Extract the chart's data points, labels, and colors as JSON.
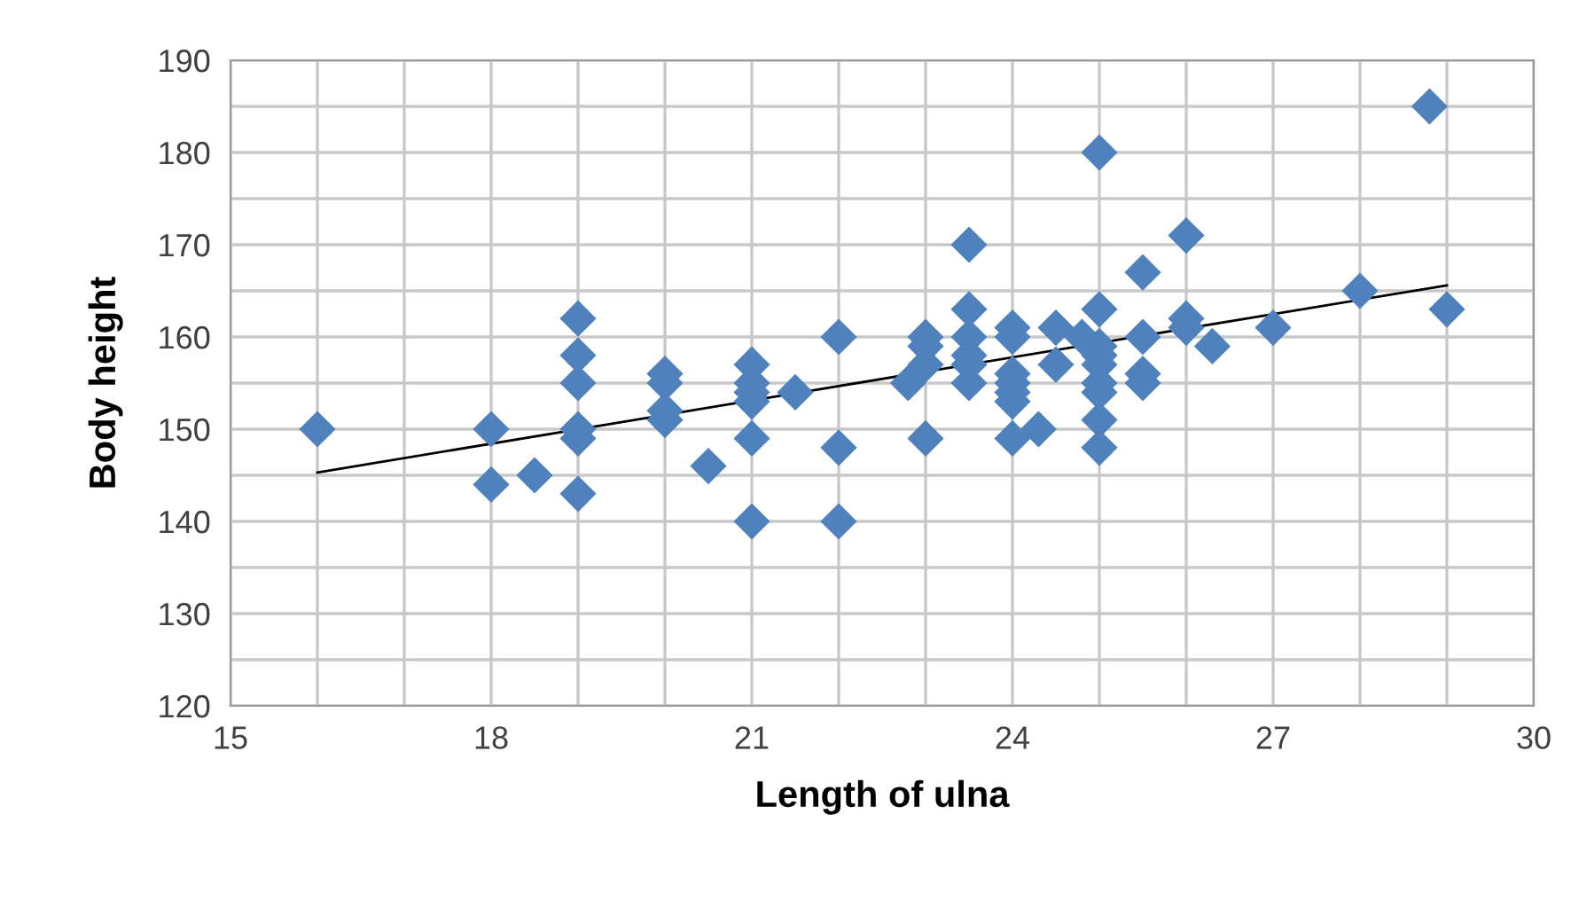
{
  "chart_data": {
    "type": "scatter",
    "xlabel": "Length of ulna",
    "ylabel": "Body height",
    "xlim": [
      15,
      30
    ],
    "ylim": [
      120,
      190
    ],
    "xticks": [
      15,
      {
        "value": 16,
        "label": null
      },
      {
        "value": 17,
        "label": null
      },
      18,
      {
        "value": 19,
        "label": null
      },
      {
        "value": 20,
        "label": null
      },
      21,
      {
        "value": 22,
        "label": null
      },
      {
        "value": 23,
        "label": null
      },
      24,
      {
        "value": 25,
        "label": null
      },
      {
        "value": 26,
        "label": null
      },
      27,
      {
        "value": 28,
        "label": null
      },
      {
        "value": 29,
        "label": null
      },
      30
    ],
    "yticks": [
      120,
      {
        "value": 125,
        "label": null
      },
      130,
      {
        "value": 135,
        "label": null
      },
      140,
      {
        "value": 145,
        "label": null
      },
      150,
      {
        "value": 155,
        "label": null
      },
      160,
      {
        "value": 165,
        "label": null
      },
      170,
      {
        "value": 175,
        "label": null
      },
      180,
      {
        "value": 185,
        "label": null
      },
      190
    ],
    "grid": true,
    "marker": "diamond",
    "series": [
      {
        "color": "#4f81bd",
        "x": [
          16,
          18,
          18,
          18.5,
          19,
          19,
          19,
          19,
          19,
          19,
          20,
          20,
          20,
          20,
          20.5,
          21,
          21,
          21,
          21,
          21,
          21,
          21.5,
          22,
          22,
          22,
          22.8,
          23,
          23,
          23,
          23,
          23.5,
          23.5,
          23.5,
          23.5,
          23.5,
          23.5,
          24,
          24,
          24,
          24,
          24,
          24,
          24,
          24.3,
          24.5,
          24.5,
          24.8,
          25,
          25,
          25,
          25,
          25,
          25,
          25,
          25,
          25,
          25.5,
          25.5,
          25.5,
          25.5,
          26,
          26,
          26,
          26.3,
          27,
          28,
          28.8,
          29
        ],
        "values": [
          150,
          150,
          144,
          145,
          162,
          158,
          155,
          150,
          149,
          143,
          156,
          155,
          152,
          151,
          146,
          157,
          155,
          154,
          153,
          149,
          140,
          154,
          160,
          148,
          140,
          155,
          160,
          159,
          157,
          149,
          170,
          163,
          160,
          158,
          157,
          155,
          161,
          160,
          156,
          155,
          154,
          153,
          149,
          150,
          161,
          157,
          160,
          180,
          163,
          159,
          158,
          157,
          155,
          154,
          151,
          148,
          167,
          160,
          156,
          155,
          171,
          162,
          161,
          159,
          161,
          165,
          185,
          163
        ]
      },
      {
        "type": "line",
        "color": "#000000",
        "marker": "none",
        "x": [
          16,
          29
        ],
        "values": [
          145.3,
          165.6
        ]
      }
    ]
  }
}
